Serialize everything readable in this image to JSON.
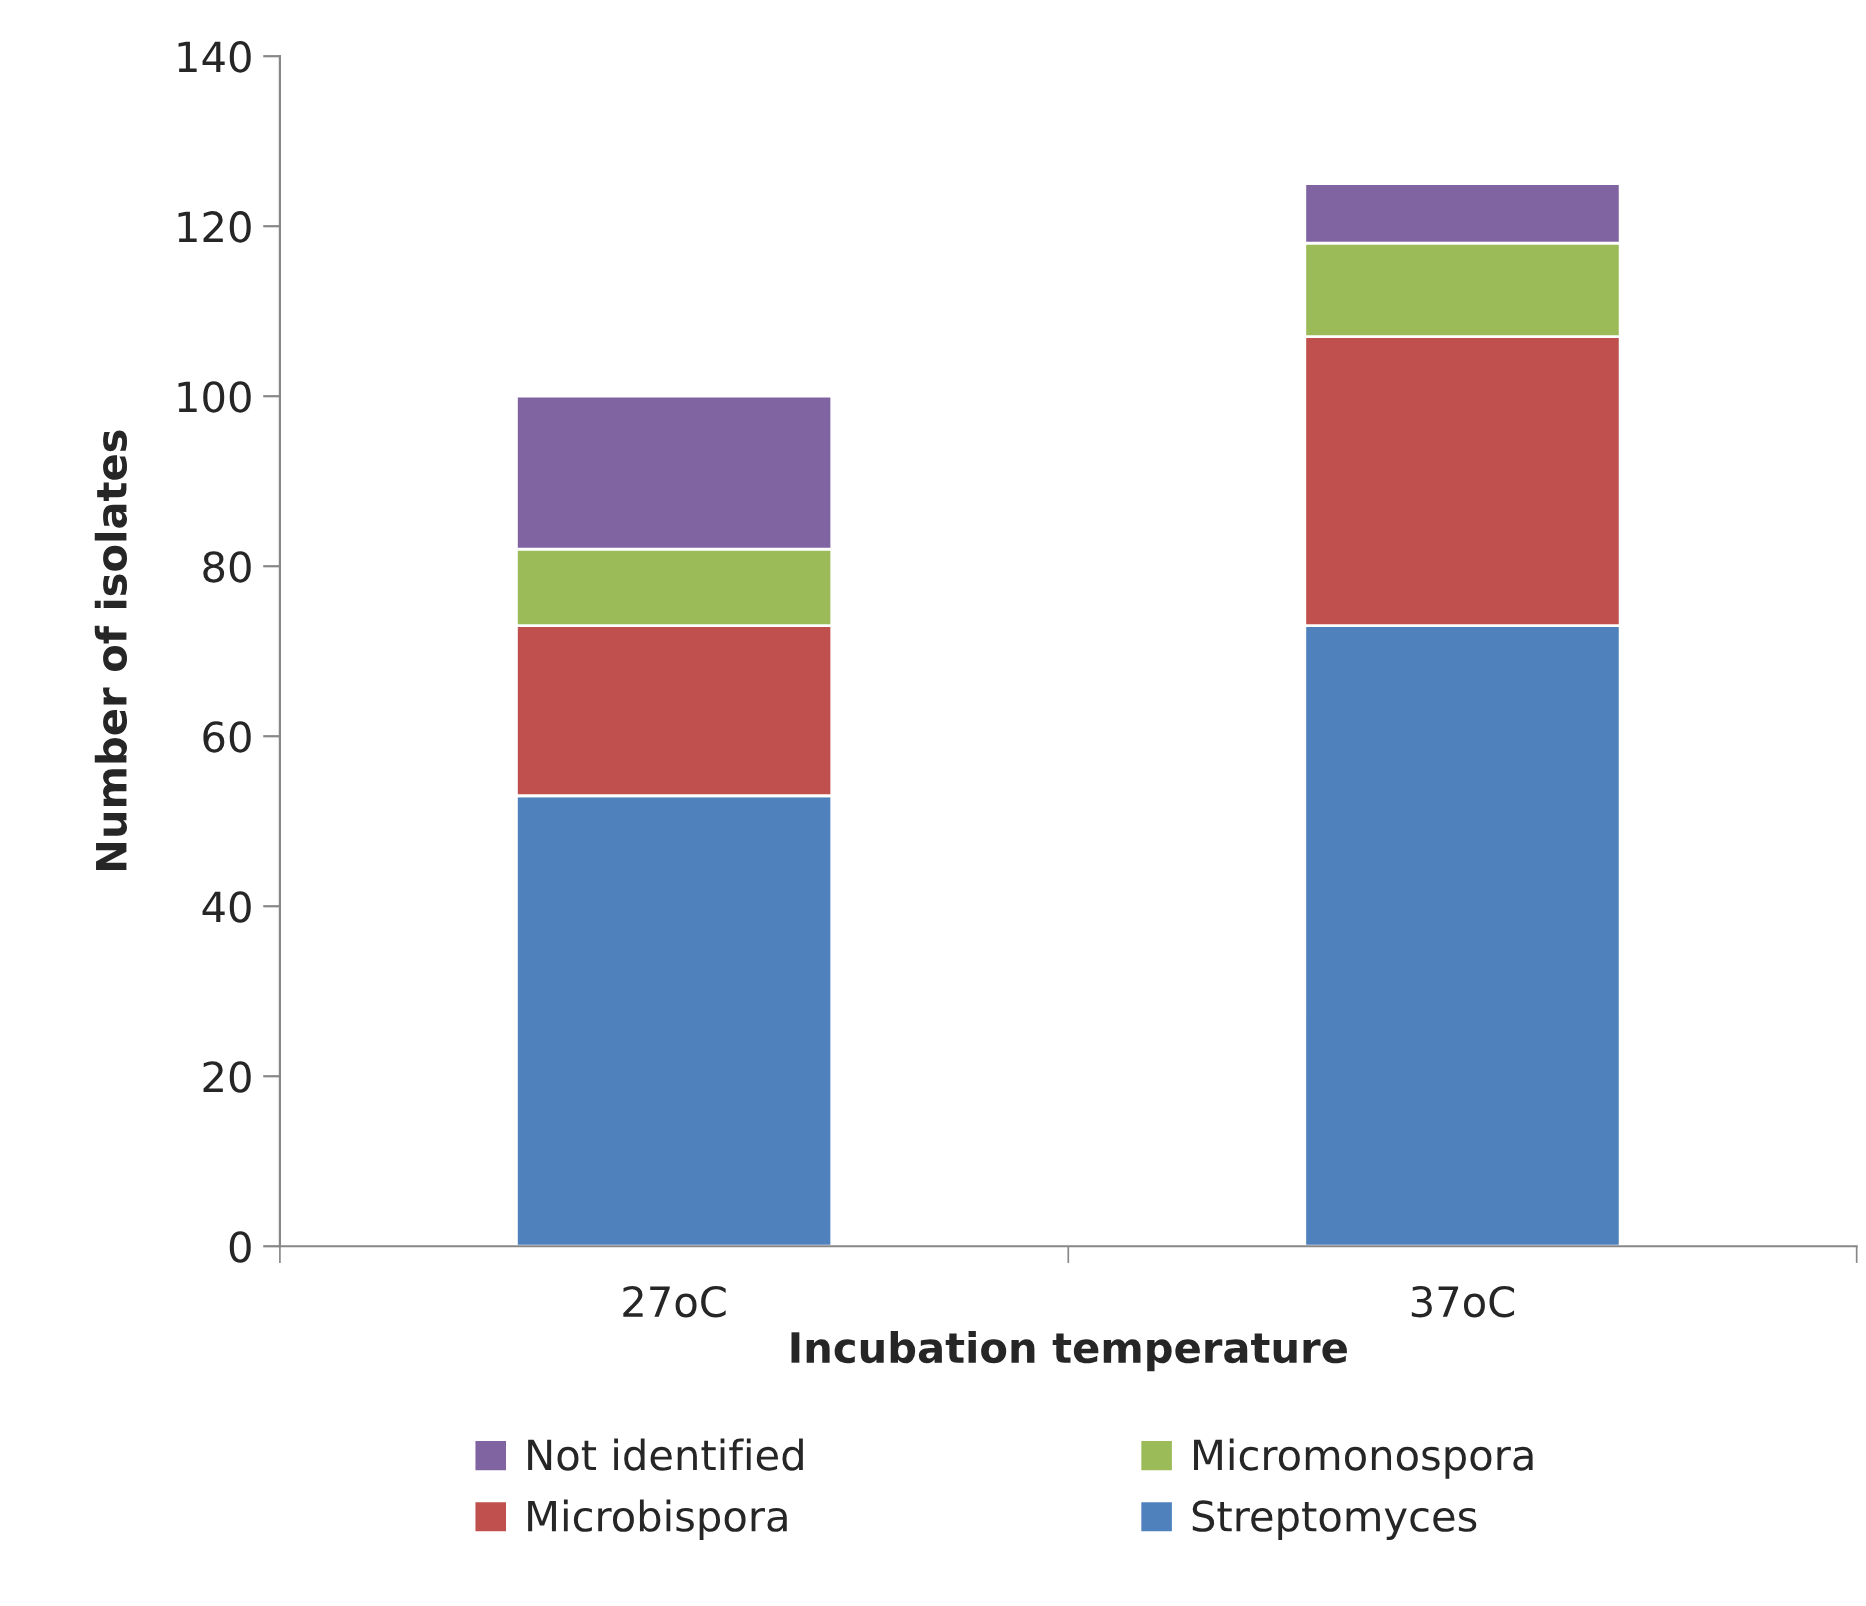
{
  "chart_data": {
    "type": "bar",
    "stacked": true,
    "xlabel": "Incubation temperature",
    "ylabel": "Number of isolates",
    "categories": [
      "27oC",
      "37oC"
    ],
    "series": [
      {
        "name": "Streptomyces",
        "color": "#4f81bd",
        "values": [
          53,
          73
        ]
      },
      {
        "name": "Microbispora",
        "color": "#c0504d",
        "values": [
          20,
          34
        ]
      },
      {
        "name": "Micromonospora",
        "color": "#9bbb59",
        "values": [
          9,
          11
        ]
      },
      {
        "name": "Not identified",
        "color": "#8064a2",
        "values": [
          18,
          7
        ]
      }
    ],
    "ylim": [
      0,
      140
    ],
    "yticks": [
      0,
      20,
      40,
      60,
      80,
      100,
      120,
      140
    ],
    "grid": false,
    "legend": "bottom"
  }
}
